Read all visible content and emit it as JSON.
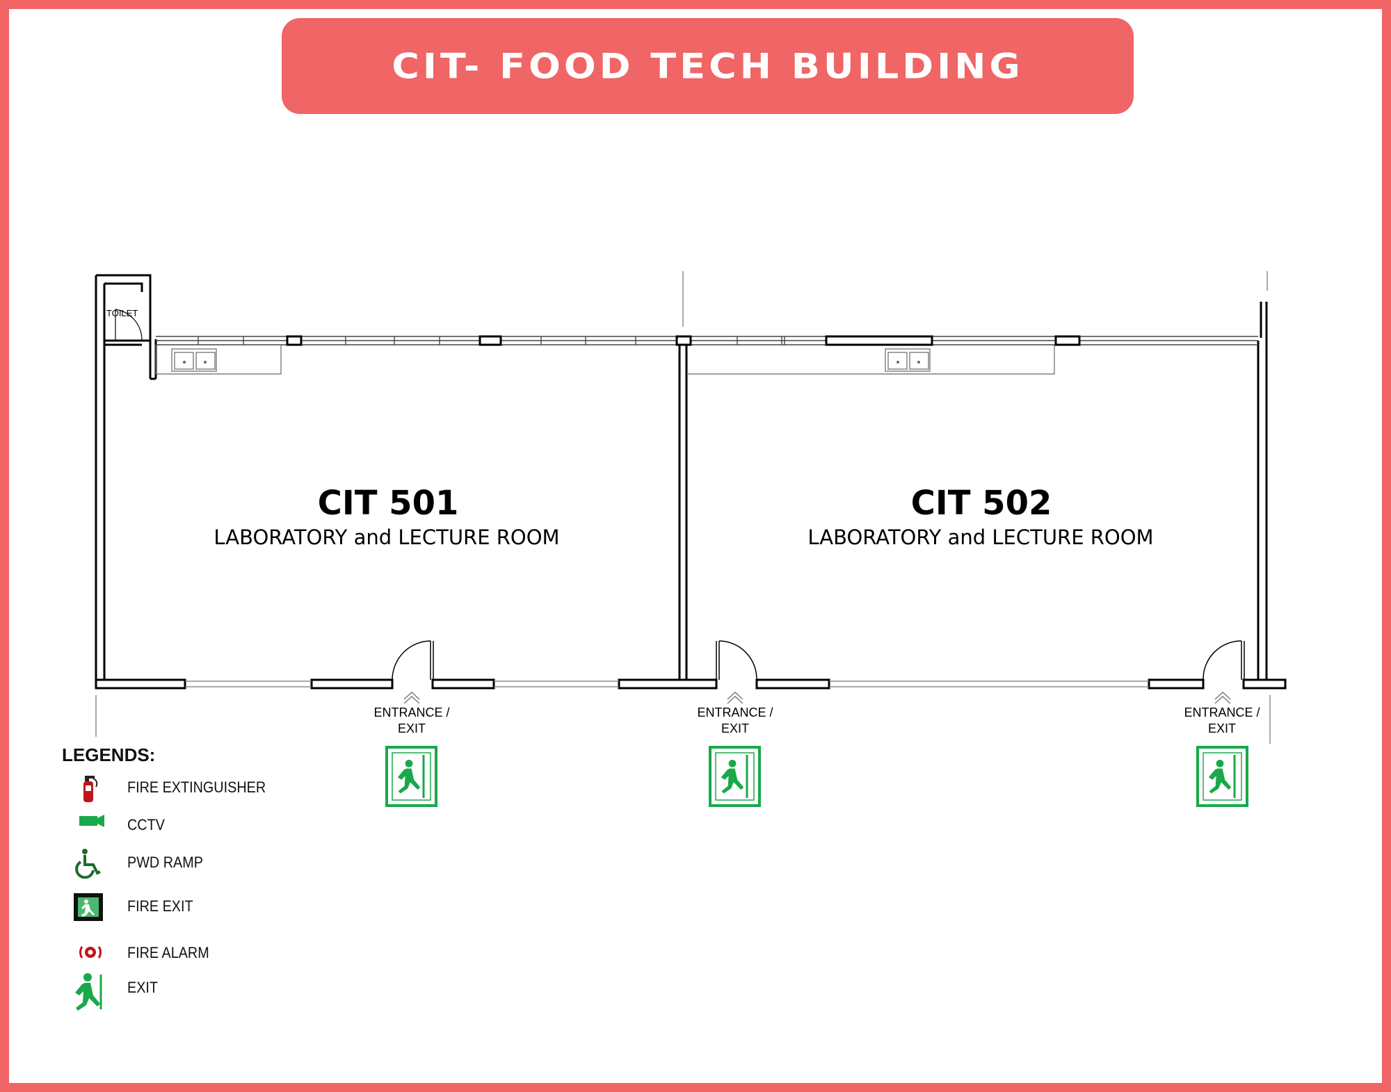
{
  "header": {
    "title": "CIT- FOOD TECH BUILDING"
  },
  "colors": {
    "accent": "#f06565",
    "exit_green": "#1aa84a",
    "wall": "#000000"
  },
  "floor_plan": {
    "toilet_label": "TOILET",
    "rooms": [
      {
        "code": "CIT 501",
        "description": "LABORATORY and LECTURE ROOM"
      },
      {
        "code": "CIT 502",
        "description": "LABORATORY and LECTURE ROOM"
      }
    ],
    "entrances": [
      {
        "line1": "ENTRANCE /",
        "line2": "EXIT",
        "icon": "exit-sign-icon"
      },
      {
        "line1": "ENTRANCE /",
        "line2": "EXIT",
        "icon": "exit-sign-icon"
      },
      {
        "line1": "ENTRANCE /",
        "line2": "EXIT",
        "icon": "exit-sign-icon"
      }
    ]
  },
  "legend": {
    "title": "LEGENDS:",
    "items": [
      {
        "label": "FIRE EXTINGUISHER",
        "icon": "fire-extinguisher-icon"
      },
      {
        "label": "CCTV",
        "icon": "cctv-icon"
      },
      {
        "label": "PWD RAMP",
        "icon": "wheelchair-icon"
      },
      {
        "label": "FIRE EXIT",
        "icon": "fire-exit-icon"
      },
      {
        "label": "FIRE ALARM",
        "icon": "fire-alarm-icon"
      },
      {
        "label": "EXIT",
        "icon": "exit-icon"
      }
    ]
  }
}
